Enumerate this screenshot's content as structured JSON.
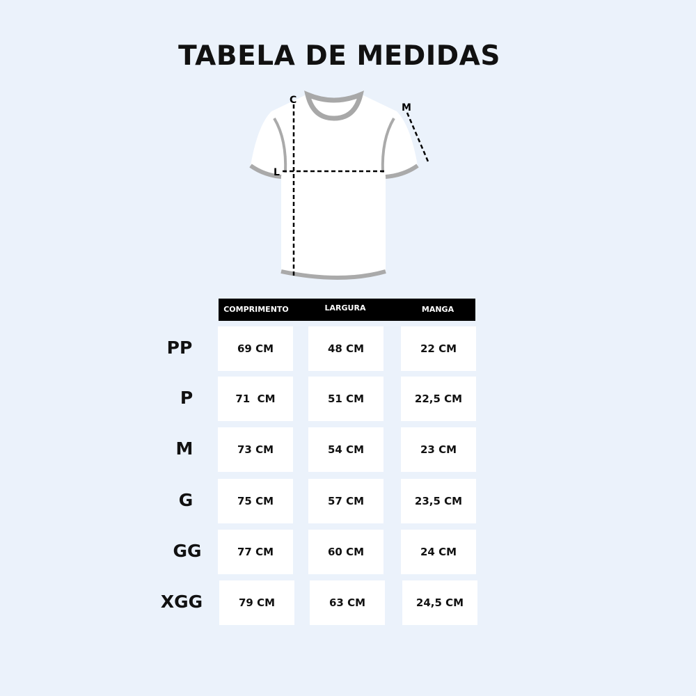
{
  "title": "TABELA DE MEDIDAS",
  "diagram": {
    "labels": {
      "length": "C",
      "width": "L",
      "sleeve": "M"
    }
  },
  "table": {
    "headers": [
      "COMPRIMENTO",
      "LARGURA",
      "MANGA"
    ],
    "rows": [
      {
        "size": "PP",
        "values": [
          "69 CM",
          "48 CM",
          "22 CM"
        ]
      },
      {
        "size": "P",
        "values": [
          "71  CM",
          "51 CM",
          "22,5 CM"
        ]
      },
      {
        "size": "M",
        "values": [
          "73 CM",
          "54 CM",
          "23 CM"
        ]
      },
      {
        "size": "G",
        "values": [
          "75 CM",
          "57 CM",
          "23,5 CM"
        ]
      },
      {
        "size": "GG",
        "values": [
          "77 CM",
          "60 CM",
          "24 CM"
        ]
      },
      {
        "size": "XGG",
        "values": [
          "79 CM",
          "63 CM",
          "24,5 CM"
        ]
      }
    ]
  }
}
